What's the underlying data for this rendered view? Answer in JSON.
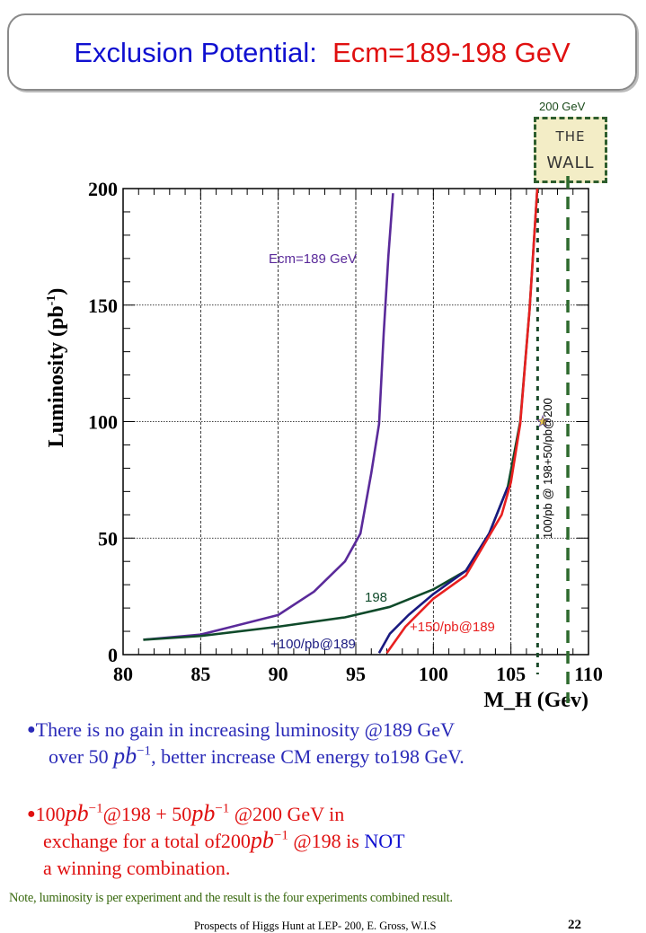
{
  "title": {
    "part1": "Exclusion Potential:",
    "part2": "Ecm=189-198 GeV",
    "color1": "#1010d0",
    "color2": "#e01010"
  },
  "wall": {
    "label": "200 GeV",
    "line1": "THE",
    "line2": "WALL"
  },
  "chart_data": {
    "type": "line",
    "xlabel": "M_H (Gev)",
    "xlabel_main": "M",
    "xlabel_sub": "H",
    "xlabel_unit": "(Gev)",
    "ylabel": "Luminosity (pb-1)",
    "ylabel_main": "Luminosity (pb",
    "ylabel_sup": "-1",
    "ylabel_end": ")",
    "xlim": [
      80,
      110
    ],
    "ylim": [
      0,
      200
    ],
    "xticks": [
      "80",
      "85",
      "90",
      "95",
      "100",
      "105",
      "110"
    ],
    "yticks": [
      "0",
      "50",
      "100",
      "150",
      "200"
    ],
    "grid": true,
    "series": [
      {
        "name": "Ecm=189 GeV",
        "color": "#5a2a9a",
        "x": [
          81.3,
          85,
          90,
          92.3,
          94.3,
          95.3,
          96.0,
          96.5,
          96.8,
          97.1,
          97.4
        ],
        "y": [
          6.4,
          8.6,
          17,
          27,
          40,
          52,
          78,
          99,
          138,
          171,
          198
        ]
      },
      {
        "name": "198",
        "color": "#0f4a2a",
        "x": [
          81.3,
          85,
          90,
          94.3,
          97.2,
          100,
          102.1,
          103.6,
          104.8,
          105.6,
          106.2,
          106.7
        ],
        "y": [
          6.4,
          8,
          12,
          16,
          20.5,
          28,
          36,
          52,
          72,
          100,
          148,
          200
        ]
      },
      {
        "name": "+100/pb@189",
        "color": "#1a1a80",
        "x": [
          96.5,
          97.2,
          98.4,
          100,
          102.1,
          103.6,
          104.8
        ],
        "y": [
          0.7,
          9,
          17,
          26,
          36,
          52,
          72
        ]
      },
      {
        "name": "+150/pb@189",
        "color": "#e82020",
        "x": [
          97.0,
          98.2,
          100,
          102.1,
          104.4,
          105,
          105.6,
          106.2,
          106.7
        ],
        "y": [
          0.7,
          12,
          24,
          34,
          60,
          74,
          99,
          148,
          200
        ]
      }
    ],
    "vertical_lines": [
      {
        "x": 106.72,
        "style": "dotted",
        "color": "#1a4a2a"
      },
      {
        "x": 108.67,
        "style": "dashed",
        "color": "#2e6a2e"
      }
    ],
    "marker": {
      "x": 107.05,
      "y": 100,
      "shape": "star",
      "color": "#e8c850"
    },
    "annotations": {
      "ecm189": "Ecm=189 GeV",
      "l198": "198",
      "p100": "+100/pb@189",
      "p150": "+150/pb@189",
      "vertical": "100/pb @ 198+50/pb@200"
    }
  },
  "bullets": {
    "b1_line1": "There is no gain in increasing luminosity @189 GeV",
    "b1_line2a": "over 50 ",
    "b1_line2b": ", better increase CM energy to198 GeV.",
    "pb": "pb",
    "inv": "−1",
    "b2_a": "100",
    "b2_b": "@198 + 50",
    "b2_c": " @200 GeV in",
    "b2_line2a": "exchange for a  total of200",
    "b2_line2b": " @198 is ",
    "b2_not": "NOT",
    "b2_line3": "a winning combination."
  },
  "note": "Note, luminosity is per experiment and the result is the four experiments combined result.",
  "footer": "Prospects of Higgs Hunt at LEP-   200, E. Gross, W.I.S",
  "page_number": "22"
}
